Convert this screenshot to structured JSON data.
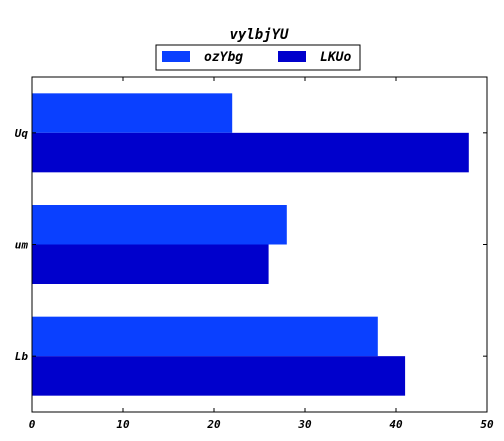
{
  "chart_data": {
    "type": "bar",
    "orientation": "horizontal",
    "title": "vylbjYU",
    "xlabel": "",
    "ylabel": "",
    "categories": [
      "Lb",
      "um",
      "Uq"
    ],
    "series": [
      {
        "name": "ozYbg",
        "values": [
          38,
          28,
          22
        ],
        "color": "#0a40ff"
      },
      {
        "name": "LKUo",
        "values": [
          41,
          26,
          48
        ],
        "color": "#0000cc"
      }
    ],
    "xlim": [
      0,
      50
    ],
    "xticks": [
      0,
      10,
      20,
      30,
      40,
      50
    ],
    "grid": false,
    "legend_position": "top-center"
  }
}
